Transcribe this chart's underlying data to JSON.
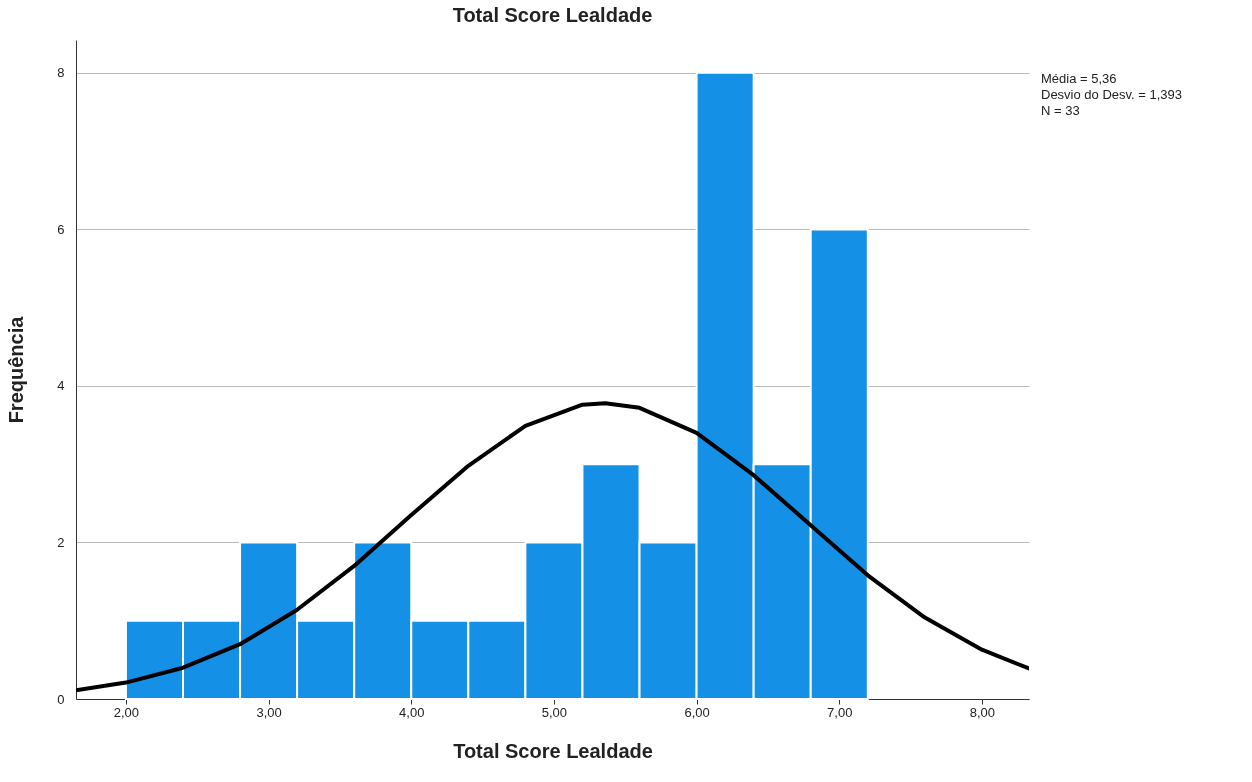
{
  "chart_data": {
    "type": "histogram",
    "title": "Total Score Lealdade",
    "xlabel": "Total Score Lealdade",
    "ylabel": "Frequência",
    "bins": [
      2.0,
      2.4,
      2.8,
      3.2,
      3.6,
      4.0,
      4.4,
      4.8,
      5.2,
      5.6,
      6.0,
      6.4,
      6.8,
      7.2
    ],
    "values": [
      1,
      1,
      2,
      1,
      2,
      1,
      1,
      2,
      3,
      2,
      8,
      3,
      6
    ],
    "color": "#1490e6",
    "series": [
      {
        "type": "line",
        "color": "#000000",
        "x": [
          1.65,
          2.0,
          2.4,
          2.8,
          3.2,
          3.6,
          4.0,
          4.4,
          4.8,
          5.2,
          5.36,
          5.6,
          6.0,
          6.4,
          6.8,
          7.2,
          7.6,
          8.0,
          8.33
        ],
        "values": [
          0.11,
          0.21,
          0.4,
          0.7,
          1.14,
          1.7,
          2.35,
          2.98,
          3.49,
          3.76,
          3.78,
          3.72,
          3.4,
          2.86,
          2.22,
          1.58,
          1.04,
          0.63,
          0.39
        ]
      }
    ],
    "xlim": [
      1.65,
      8.33
    ],
    "xticks": [
      {
        "value": 2,
        "label": "2,00"
      },
      {
        "value": 3,
        "label": "3,00"
      },
      {
        "value": 4,
        "label": "4,00"
      },
      {
        "value": 5,
        "label": "5,00"
      },
      {
        "value": 6,
        "label": "6,00"
      },
      {
        "value": 7,
        "label": "7,00"
      },
      {
        "value": 8,
        "label": "8,00"
      }
    ],
    "ylim": [
      0,
      8.42
    ],
    "yticks": [
      0,
      2,
      4,
      6,
      8
    ],
    "grid": "y",
    "annotations": [
      "Média = 5,36",
      " Desvio do Desv. = 1,393",
      "N = 33"
    ]
  }
}
